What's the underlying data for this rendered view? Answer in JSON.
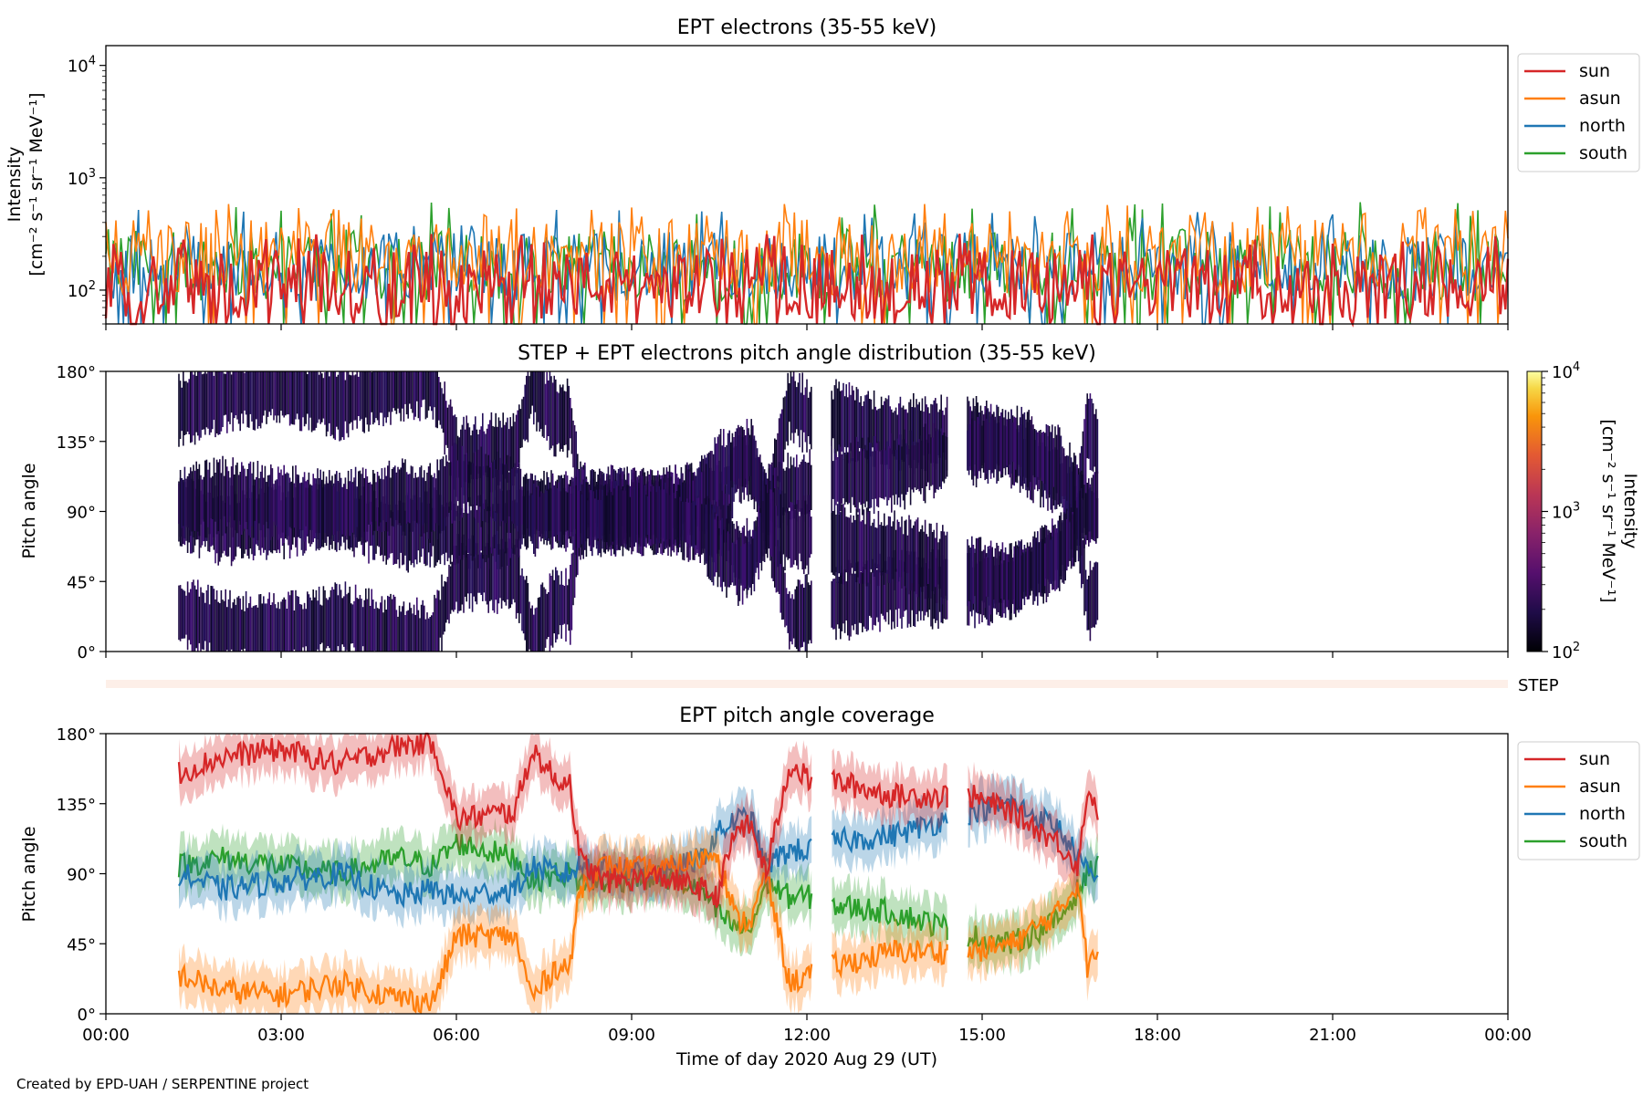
{
  "chart_data": [
    {
      "type": "line",
      "title": "EPT electrons (35-55 keV)",
      "ylabel_line1": "Intensity",
      "ylabel_line2": "[cm⁻² s⁻¹ sr⁻¹ MeV⁻¹]",
      "yscale": "log",
      "ylim": [
        50,
        15000
      ],
      "yticks": [
        {
          "value": 100,
          "base": "10",
          "exp": "2"
        },
        {
          "value": 1000,
          "base": "10",
          "exp": "3"
        },
        {
          "value": 10000,
          "base": "10",
          "exp": "4"
        }
      ],
      "xlim": [
        "00:00",
        "24:00"
      ],
      "legend_position": "upper-right-outside",
      "series": [
        {
          "name": "sun",
          "color": "#d62728",
          "typical": [
            55,
            230
          ],
          "spikes": 320
        },
        {
          "name": "asun",
          "color": "#ff7f0e",
          "typical": [
            90,
            420
          ],
          "spikes": 600
        },
        {
          "name": "north",
          "color": "#1f77b4",
          "typical": [
            80,
            330
          ],
          "spikes": 520
        },
        {
          "name": "south",
          "color": "#2ca02c",
          "typical": [
            80,
            350
          ],
          "spikes": 620
        }
      ]
    },
    {
      "type": "heatmap",
      "title": "STEP + EPT electrons pitch angle distribution (35-55 keV)",
      "ylabel": "Pitch angle",
      "ylim": [
        0,
        180
      ],
      "yticks": [
        "0°",
        "45°",
        "90°",
        "135°",
        "180°"
      ],
      "xlim": [
        "00:00",
        "24:00"
      ],
      "data_range": [
        "01:15",
        "17:00"
      ],
      "colormap": "inferno",
      "colorbar": {
        "label_line1": "Intensity",
        "label_line2": "[cm⁻² s⁻¹ sr⁻¹ MeV⁻¹]",
        "scale": "log",
        "range": [
          100,
          10000
        ],
        "ticks": [
          {
            "value": 100,
            "base": "10",
            "exp": "2"
          },
          {
            "value": 1000,
            "base": "10",
            "exp": "3"
          },
          {
            "value": 10000,
            "base": "10",
            "exp": "4"
          }
        ]
      }
    },
    {
      "type": "bar",
      "label": "STEP",
      "color": "#fdefe8",
      "xlim": [
        "00:00",
        "24:00"
      ]
    },
    {
      "type": "area",
      "title": "EPT pitch angle coverage",
      "ylabel": "Pitch angle",
      "xlabel": "Time of day 2020 Aug 29 (UT)",
      "ylim": [
        0,
        180
      ],
      "yticks": [
        "0°",
        "45°",
        "90°",
        "135°",
        "180°"
      ],
      "xticks": [
        "00:00",
        "03:00",
        "06:00",
        "09:00",
        "12:00",
        "15:00",
        "18:00",
        "21:00",
        "00:00"
      ],
      "xlim": [
        "00:00",
        "24:00"
      ],
      "legend_position": "upper-right-outside",
      "data_gaps": [
        [
          "12:05",
          "12:25"
        ],
        [
          "14:25",
          "14:45"
        ],
        [
          "17:00",
          "24:00"
        ]
      ],
      "series": [
        {
          "name": "sun",
          "color": "#d62728",
          "time_h": [
            1.25,
            2.0,
            3.0,
            4.0,
            5.0,
            5.6,
            6.0,
            7.0,
            7.3,
            7.7,
            7.95,
            8.1,
            8.5,
            9.5,
            10.2,
            10.45,
            10.8,
            11.05,
            11.3,
            11.7,
            12.05,
            12.4,
            13.5,
            14.4,
            14.8,
            15.5,
            16.3,
            16.65,
            16.8,
            17.0
          ],
          "pitch_deg": [
            155,
            165,
            170,
            160,
            172,
            175,
            125,
            130,
            170,
            150,
            150,
            100,
            85,
            88,
            80,
            75,
            120,
            120,
            90,
            160,
            150,
            150,
            140,
            140,
            140,
            130,
            110,
            95,
            145,
            130
          ]
        },
        {
          "name": "asun",
          "color": "#ff7f0e",
          "time_h": [
            1.25,
            2.0,
            3.0,
            4.0,
            5.0,
            5.6,
            6.0,
            7.0,
            7.3,
            7.7,
            7.95,
            8.1,
            8.5,
            9.5,
            10.2,
            10.45,
            10.8,
            11.05,
            11.3,
            11.7,
            12.05,
            12.4,
            13.5,
            14.4,
            14.8,
            15.5,
            16.3,
            16.65,
            16.8,
            17.0
          ],
          "pitch_deg": [
            25,
            15,
            12,
            20,
            10,
            8,
            50,
            50,
            10,
            30,
            30,
            80,
            95,
            92,
            100,
            105,
            60,
            60,
            90,
            20,
            25,
            30,
            40,
            40,
            40,
            45,
            65,
            85,
            30,
            40
          ]
        },
        {
          "name": "north",
          "color": "#1f77b4",
          "time_h": [
            1.25,
            2.0,
            3.0,
            4.0,
            5.0,
            5.6,
            6.0,
            7.0,
            7.3,
            7.7,
            7.95,
            8.1,
            8.5,
            9.5,
            10.2,
            10.45,
            10.8,
            11.05,
            11.3,
            11.7,
            12.05,
            12.4,
            13.5,
            14.4,
            14.8,
            15.5,
            16.3,
            16.65,
            16.8,
            17.0
          ],
          "pitch_deg": [
            90,
            80,
            85,
            90,
            75,
            80,
            75,
            80,
            95,
            90,
            90,
            95,
            95,
            90,
            100,
            115,
            125,
            125,
            95,
            105,
            105,
            110,
            115,
            125,
            130,
            135,
            120,
            100,
            90,
            85
          ]
        },
        {
          "name": "south",
          "color": "#2ca02c",
          "time_h": [
            1.25,
            2.0,
            3.0,
            4.0,
            5.0,
            5.6,
            6.0,
            7.0,
            7.3,
            7.7,
            7.95,
            8.1,
            8.5,
            9.5,
            10.2,
            10.45,
            10.8,
            11.05,
            11.3,
            11.7,
            12.05,
            12.4,
            13.5,
            14.4,
            14.8,
            15.5,
            16.3,
            16.65,
            16.8,
            17.0
          ],
          "pitch_deg": [
            95,
            100,
            95,
            90,
            100,
            95,
            110,
            100,
            85,
            90,
            90,
            85,
            85,
            88,
            80,
            65,
            55,
            55,
            85,
            75,
            75,
            70,
            65,
            55,
            50,
            45,
            60,
            80,
            90,
            95
          ]
        }
      ],
      "band_halfwidth_deg": 15
    }
  ],
  "footer": {
    "credit": "Created by EPD-UAH / SERPENTINE project"
  }
}
